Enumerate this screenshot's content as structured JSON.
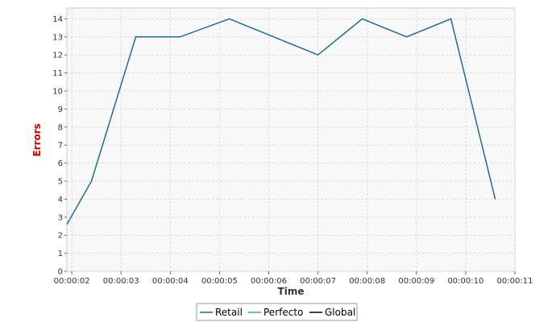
{
  "chart_data": {
    "type": "line",
    "xlabel": "Time",
    "ylabel": "Errors",
    "xlim": [
      "00:00:01.9",
      "00:00:11"
    ],
    "ylim": [
      0,
      14.6
    ],
    "x_ticks": [
      "00:00:02",
      "00:00:03",
      "00:00:04",
      "00:00:05",
      "00:00:06",
      "00:00:07",
      "00:00:08",
      "00:00:09",
      "00:00:10",
      "00:00:11"
    ],
    "y_ticks": [
      0,
      1,
      2,
      3,
      4,
      5,
      6,
      7,
      8,
      9,
      10,
      11,
      12,
      13,
      14
    ],
    "grid": true,
    "legend_position": "bottom",
    "series": [
      {
        "name": "Retail",
        "color": "#1f6e8c",
        "points": [
          [
            "00:00:01.9",
            2.6
          ],
          [
            "00:00:02.4",
            5
          ],
          [
            "00:00:03.3",
            13
          ],
          [
            "00:00:04.2",
            13
          ],
          [
            "00:00:05.2",
            14
          ],
          [
            "00:00:06.1",
            13
          ],
          [
            "00:00:07",
            12
          ],
          [
            "00:00:07.9",
            14
          ],
          [
            "00:00:08.8",
            13
          ],
          [
            "00:00:09.7",
            14
          ],
          [
            "00:00:10.6",
            4
          ]
        ]
      },
      {
        "name": "Perfecto",
        "color": "#4caf50",
        "points": []
      },
      {
        "name": "Global",
        "color": "#000000",
        "points": []
      }
    ],
    "colors": {
      "ylabel": "#cc0000",
      "xlabel": "#333333",
      "plot_bg": "#f8f8f8",
      "grid": "#dddddd"
    }
  }
}
